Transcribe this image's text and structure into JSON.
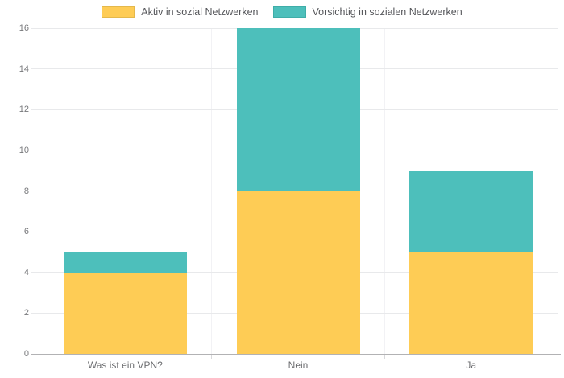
{
  "chart_data": {
    "type": "bar",
    "stacked": true,
    "title": "",
    "xlabel": "",
    "ylabel": "",
    "categories": [
      "Was ist ein VPN?",
      "Nein",
      "Ja"
    ],
    "series": [
      {
        "name": "Aktiv in sozial Netzwerken",
        "color": "#FECC55",
        "border_color": "#E4B84B",
        "values": [
          4,
          8,
          5
        ]
      },
      {
        "name": "Vorsichtig in sozialen Netzwerken",
        "color": "#4DBFBB",
        "border_color": "#3FADA8",
        "values": [
          1,
          8,
          4
        ]
      }
    ],
    "stack_totals": [
      5,
      16,
      9
    ],
    "ylim": [
      0,
      16
    ],
    "ytick_step": 2,
    "yticks": [
      0,
      2,
      4,
      6,
      8,
      10,
      12,
      14,
      16
    ],
    "legend_position": "top",
    "grid": true
  }
}
